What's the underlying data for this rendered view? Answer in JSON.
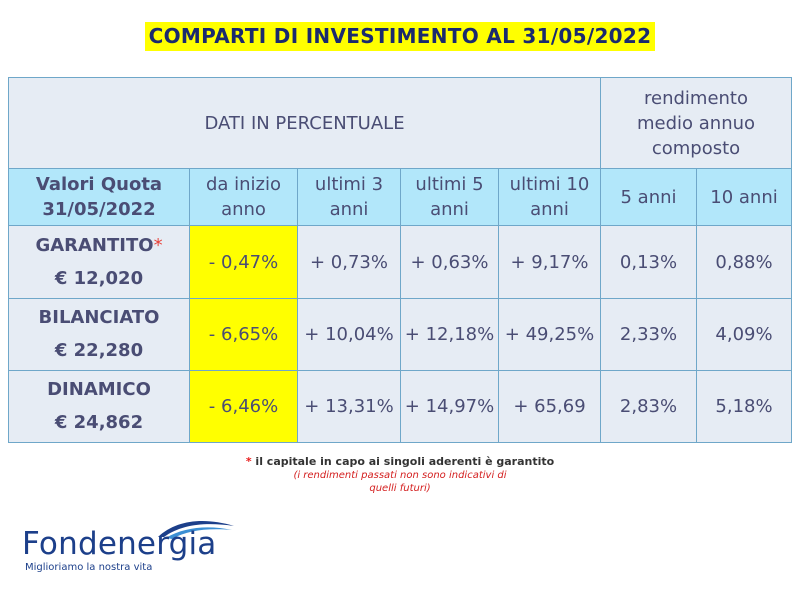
{
  "title": "COMPARTI DI INVESTIMENTO AL 31/05/2022",
  "table": {
    "header_main": "DATI IN PERCENTUALE",
    "header_right": "rendimento medio annuo composto",
    "quota_label_line1": "Valori Quota",
    "quota_label_line2": "31/05/2022",
    "columns": [
      "da inizio anno",
      "ultimi 3 anni",
      "ultimi 5 anni",
      "ultimi 10 anni",
      "5 anni",
      "10 anni"
    ],
    "rows": [
      {
        "name": "GARANTITO",
        "asterisk": "*",
        "value": "€ 12,020",
        "cells": [
          "- 0,47%",
          "+ 0,73%",
          "+ 0,63%",
          "+ 9,17%",
          "0,13%",
          "0,88%"
        ]
      },
      {
        "name": "BILANCIATO",
        "asterisk": "",
        "value": "€ 22,280",
        "cells": [
          "- 6,65%",
          "+ 10,04%",
          "+ 12,18%",
          "+ 49,25%",
          "2,33%",
          "4,09%"
        ]
      },
      {
        "name": "DINAMICO",
        "asterisk": "",
        "value": "€ 24,862",
        "cells": [
          "- 6,46%",
          "+ 13,31%",
          "+ 14,97%",
          "+ 65,69",
          "2,83%",
          "5,18%"
        ]
      }
    ]
  },
  "footnote": {
    "star": "*",
    "text": "il capitale in capo ai singoli aderenti è garantito",
    "disclaimer": "(i rendimenti passati non sono indicativi di quelli futuri)"
  },
  "logo": {
    "name": "Fondenergia",
    "tagline": "Miglioriamo la nostra vita"
  },
  "colors": {
    "title_bg": "#ffff00",
    "title_text": "#1a2a6e",
    "header_bg": "#e6ecf4",
    "subheader_bg": "#b2e7fa",
    "highlight_bg": "#ffff00",
    "border": "#6fa7c9",
    "logo_blue": "#1c3f8a"
  }
}
